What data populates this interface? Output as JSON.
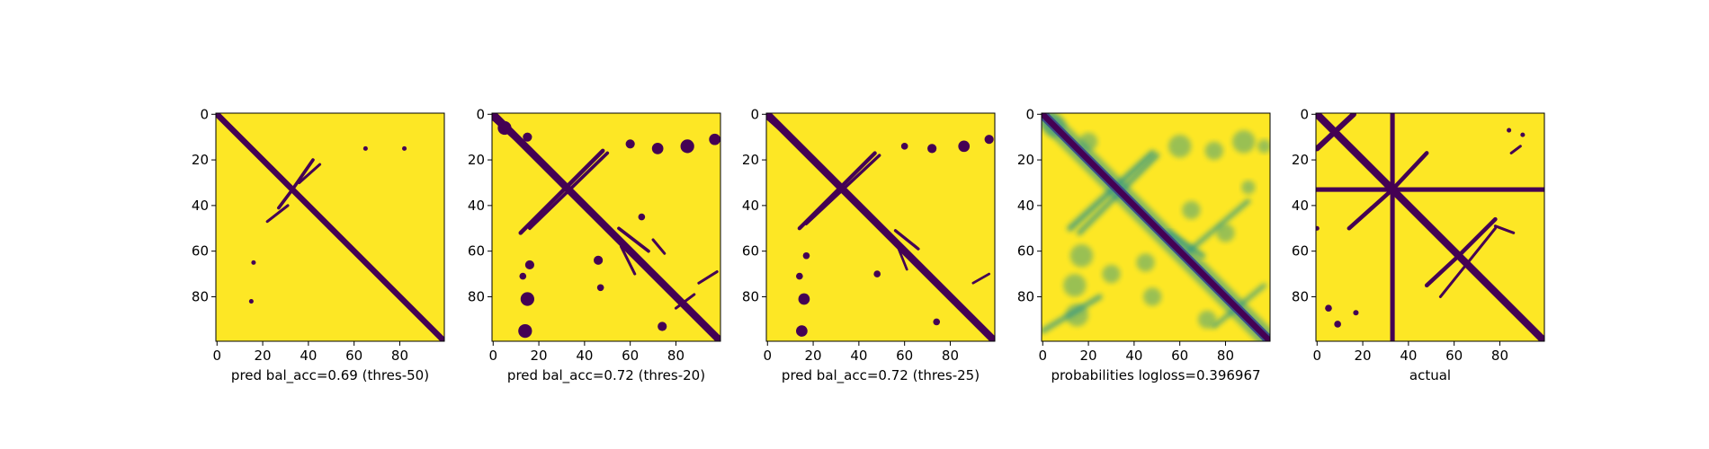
{
  "figure": {
    "background": "#ffffff"
  },
  "colors": {
    "low": "#440154",
    "high": "#fde725",
    "viridis_mid": "#21918c"
  },
  "chart_data": [
    {
      "type": "heatmap",
      "title": "",
      "xlabel": "pred bal_acc=0.69 (thres-50)",
      "ylabel": "",
      "size": 100,
      "colormap": "viridis",
      "xlim": [
        0,
        99
      ],
      "ylim": [
        99,
        0
      ],
      "xticks": [
        0,
        20,
        40,
        60,
        80
      ],
      "yticks": [
        0,
        20,
        40,
        60,
        80
      ],
      "diagonal_width": 2,
      "segments": [
        {
          "x1": 27,
          "y1": 41,
          "x2": 33,
          "y2": 33,
          "w": 1.2
        },
        {
          "x1": 33,
          "y1": 33,
          "x2": 42,
          "y2": 20,
          "w": 1.2
        },
        {
          "x1": 22,
          "y1": 47,
          "x2": 31,
          "y2": 40,
          "w": 1.0
        },
        {
          "x1": 36,
          "y1": 30,
          "x2": 45,
          "y2": 22,
          "w": 1.0
        }
      ],
      "blobs": [
        {
          "x": 65,
          "y": 15,
          "r": 1
        },
        {
          "x": 82,
          "y": 15,
          "r": 1
        },
        {
          "x": 16,
          "y": 65,
          "r": 1
        },
        {
          "x": 15,
          "y": 82,
          "r": 1
        }
      ]
    },
    {
      "type": "heatmap",
      "title": "",
      "xlabel": "pred bal_acc=0.72 (thres-20)",
      "ylabel": "",
      "size": 100,
      "colormap": "viridis",
      "xlim": [
        0,
        99
      ],
      "ylim": [
        99,
        0
      ],
      "xticks": [
        0,
        20,
        40,
        60,
        80
      ],
      "yticks": [
        0,
        20,
        40,
        60,
        80
      ],
      "diagonal_width": 2.5,
      "segments": [
        {
          "x1": 0,
          "y1": 1,
          "x2": 12,
          "y2": 12,
          "w": 2.5
        },
        {
          "x1": 12,
          "y1": 52,
          "x2": 48,
          "y2": 16,
          "w": 1.5
        },
        {
          "x1": 16,
          "y1": 50,
          "x2": 50,
          "y2": 17,
          "w": 1.2
        },
        {
          "x1": 55,
          "y1": 50,
          "x2": 68,
          "y2": 60,
          "w": 1.2
        },
        {
          "x1": 56,
          "y1": 58,
          "x2": 62,
          "y2": 70,
          "w": 1.0
        },
        {
          "x1": 70,
          "y1": 55,
          "x2": 75,
          "y2": 61,
          "w": 1.0
        },
        {
          "x1": 80,
          "y1": 85,
          "x2": 88,
          "y2": 79,
          "w": 1.0
        },
        {
          "x1": 90,
          "y1": 74,
          "x2": 98,
          "y2": 69,
          "w": 1.0
        }
      ],
      "blobs": [
        {
          "x": 5,
          "y": 6,
          "r": 3
        },
        {
          "x": 15,
          "y": 10,
          "r": 2
        },
        {
          "x": 60,
          "y": 13,
          "r": 2
        },
        {
          "x": 72,
          "y": 15,
          "r": 2.5
        },
        {
          "x": 85,
          "y": 14,
          "r": 3
        },
        {
          "x": 97,
          "y": 11,
          "r": 2.5
        },
        {
          "x": 16,
          "y": 66,
          "r": 2
        },
        {
          "x": 13,
          "y": 71,
          "r": 1.5
        },
        {
          "x": 15,
          "y": 81,
          "r": 3
        },
        {
          "x": 14,
          "y": 95,
          "r": 3
        },
        {
          "x": 74,
          "y": 93,
          "r": 2
        },
        {
          "x": 46,
          "y": 64,
          "r": 2
        },
        {
          "x": 47,
          "y": 76,
          "r": 1.5
        },
        {
          "x": 65,
          "y": 45,
          "r": 1.5
        }
      ]
    },
    {
      "type": "heatmap",
      "title": "",
      "xlabel": "pred bal_acc=0.72 (thres-25)",
      "ylabel": "",
      "size": 100,
      "colormap": "viridis",
      "xlim": [
        0,
        99
      ],
      "ylim": [
        99,
        0
      ],
      "xticks": [
        0,
        20,
        40,
        60,
        80
      ],
      "yticks": [
        0,
        20,
        40,
        60,
        80
      ],
      "diagonal_width": 2.5,
      "segments": [
        {
          "x1": 0,
          "y1": 1,
          "x2": 9,
          "y2": 9,
          "w": 2.2
        },
        {
          "x1": 14,
          "y1": 50,
          "x2": 47,
          "y2": 17,
          "w": 1.4
        },
        {
          "x1": 17,
          "y1": 48,
          "x2": 49,
          "y2": 18,
          "w": 1.1
        },
        {
          "x1": 56,
          "y1": 51,
          "x2": 66,
          "y2": 59,
          "w": 1.1
        },
        {
          "x1": 57,
          "y1": 58,
          "x2": 61,
          "y2": 68,
          "w": 0.9
        },
        {
          "x1": 90,
          "y1": 74,
          "x2": 97,
          "y2": 70,
          "w": 0.9
        }
      ],
      "blobs": [
        {
          "x": 60,
          "y": 14,
          "r": 1.5
        },
        {
          "x": 72,
          "y": 15,
          "r": 2
        },
        {
          "x": 86,
          "y": 14,
          "r": 2.5
        },
        {
          "x": 97,
          "y": 11,
          "r": 2
        },
        {
          "x": 17,
          "y": 62,
          "r": 1.5
        },
        {
          "x": 14,
          "y": 71,
          "r": 1.5
        },
        {
          "x": 16,
          "y": 81,
          "r": 2.5
        },
        {
          "x": 15,
          "y": 95,
          "r": 2.5
        },
        {
          "x": 74,
          "y": 91,
          "r": 1.5
        },
        {
          "x": 48,
          "y": 70,
          "r": 1.5
        }
      ]
    },
    {
      "type": "heatmap",
      "title": "",
      "xlabel": "probabilities logloss=0.396967",
      "ylabel": "",
      "size": 100,
      "colormap": "viridis",
      "xlim": [
        0,
        99
      ],
      "ylim": [
        99,
        0
      ],
      "xticks": [
        0,
        20,
        40,
        60,
        80
      ],
      "yticks": [
        0,
        20,
        40,
        60,
        80
      ],
      "diagonal_width": 2.5,
      "segments": [
        {
          "x1": 12,
          "y1": 50,
          "x2": 48,
          "y2": 17,
          "w": 2.2
        },
        {
          "x1": 16,
          "y1": 52,
          "x2": 50,
          "y2": 18,
          "w": 1.8
        },
        {
          "x1": 55,
          "y1": 52,
          "x2": 70,
          "y2": 62,
          "w": 2.0
        },
        {
          "x1": 64,
          "y1": 60,
          "x2": 90,
          "y2": 38,
          "w": 1.6
        },
        {
          "x1": 0,
          "y1": 95,
          "x2": 25,
          "y2": 80,
          "w": 1.8
        },
        {
          "x1": 75,
          "y1": 93,
          "x2": 97,
          "y2": 75,
          "w": 1.5
        }
      ],
      "blobs": [
        {
          "x": 5,
          "y": 5,
          "r": 5
        },
        {
          "x": 20,
          "y": 12,
          "r": 4
        },
        {
          "x": 60,
          "y": 14,
          "r": 5
        },
        {
          "x": 75,
          "y": 16,
          "r": 4
        },
        {
          "x": 88,
          "y": 12,
          "r": 5
        },
        {
          "x": 97,
          "y": 14,
          "r": 3
        },
        {
          "x": 17,
          "y": 62,
          "r": 5
        },
        {
          "x": 14,
          "y": 75,
          "r": 5
        },
        {
          "x": 15,
          "y": 88,
          "r": 5
        },
        {
          "x": 30,
          "y": 70,
          "r": 4
        },
        {
          "x": 45,
          "y": 65,
          "r": 4
        },
        {
          "x": 48,
          "y": 80,
          "r": 4
        },
        {
          "x": 65,
          "y": 42,
          "r": 4
        },
        {
          "x": 80,
          "y": 52,
          "r": 4
        },
        {
          "x": 90,
          "y": 32,
          "r": 3
        },
        {
          "x": 72,
          "y": 90,
          "r": 4
        }
      ]
    },
    {
      "type": "heatmap",
      "title": "",
      "xlabel": "actual",
      "ylabel": "",
      "size": 100,
      "colormap": "viridis",
      "xlim": [
        0,
        99
      ],
      "ylim": [
        99,
        0
      ],
      "xticks": [
        0,
        20,
        40,
        60,
        80
      ],
      "yticks": [
        0,
        20,
        40,
        60,
        80
      ],
      "diagonal_width": 2.5,
      "segments": [
        {
          "x1": 0,
          "y1": 15,
          "x2": 16,
          "y2": 0,
          "w": 2.0
        },
        {
          "x1": 14,
          "y1": 50,
          "x2": 33,
          "y2": 33,
          "w": 1.5
        },
        {
          "x1": 33,
          "y1": 33,
          "x2": 48,
          "y2": 17,
          "w": 1.5
        },
        {
          "x1": 48,
          "y1": 75,
          "x2": 62,
          "y2": 62,
          "w": 1.5
        },
        {
          "x1": 62,
          "y1": 62,
          "x2": 78,
          "y2": 46,
          "w": 1.5
        },
        {
          "x1": 54,
          "y1": 80,
          "x2": 78,
          "y2": 50,
          "w": 1.0
        },
        {
          "x1": 78,
          "y1": 49,
          "x2": 86,
          "y2": 52,
          "w": 1.0
        },
        {
          "x1": 85,
          "y1": 17,
          "x2": 89,
          "y2": 14,
          "w": 1.0
        }
      ],
      "blobs": [
        {
          "x": 84,
          "y": 7,
          "r": 1
        },
        {
          "x": 90,
          "y": 9,
          "r": 1
        },
        {
          "x": 0,
          "y": 50,
          "r": 1
        },
        {
          "x": 5,
          "y": 85,
          "r": 1.5
        },
        {
          "x": 9,
          "y": 92,
          "r": 1.5
        },
        {
          "x": 17,
          "y": 87,
          "r": 1.2
        }
      ],
      "bands": [
        {
          "axis": "col",
          "at": 33,
          "w": 2
        },
        {
          "axis": "row",
          "at": 33,
          "w": 2
        }
      ]
    }
  ]
}
